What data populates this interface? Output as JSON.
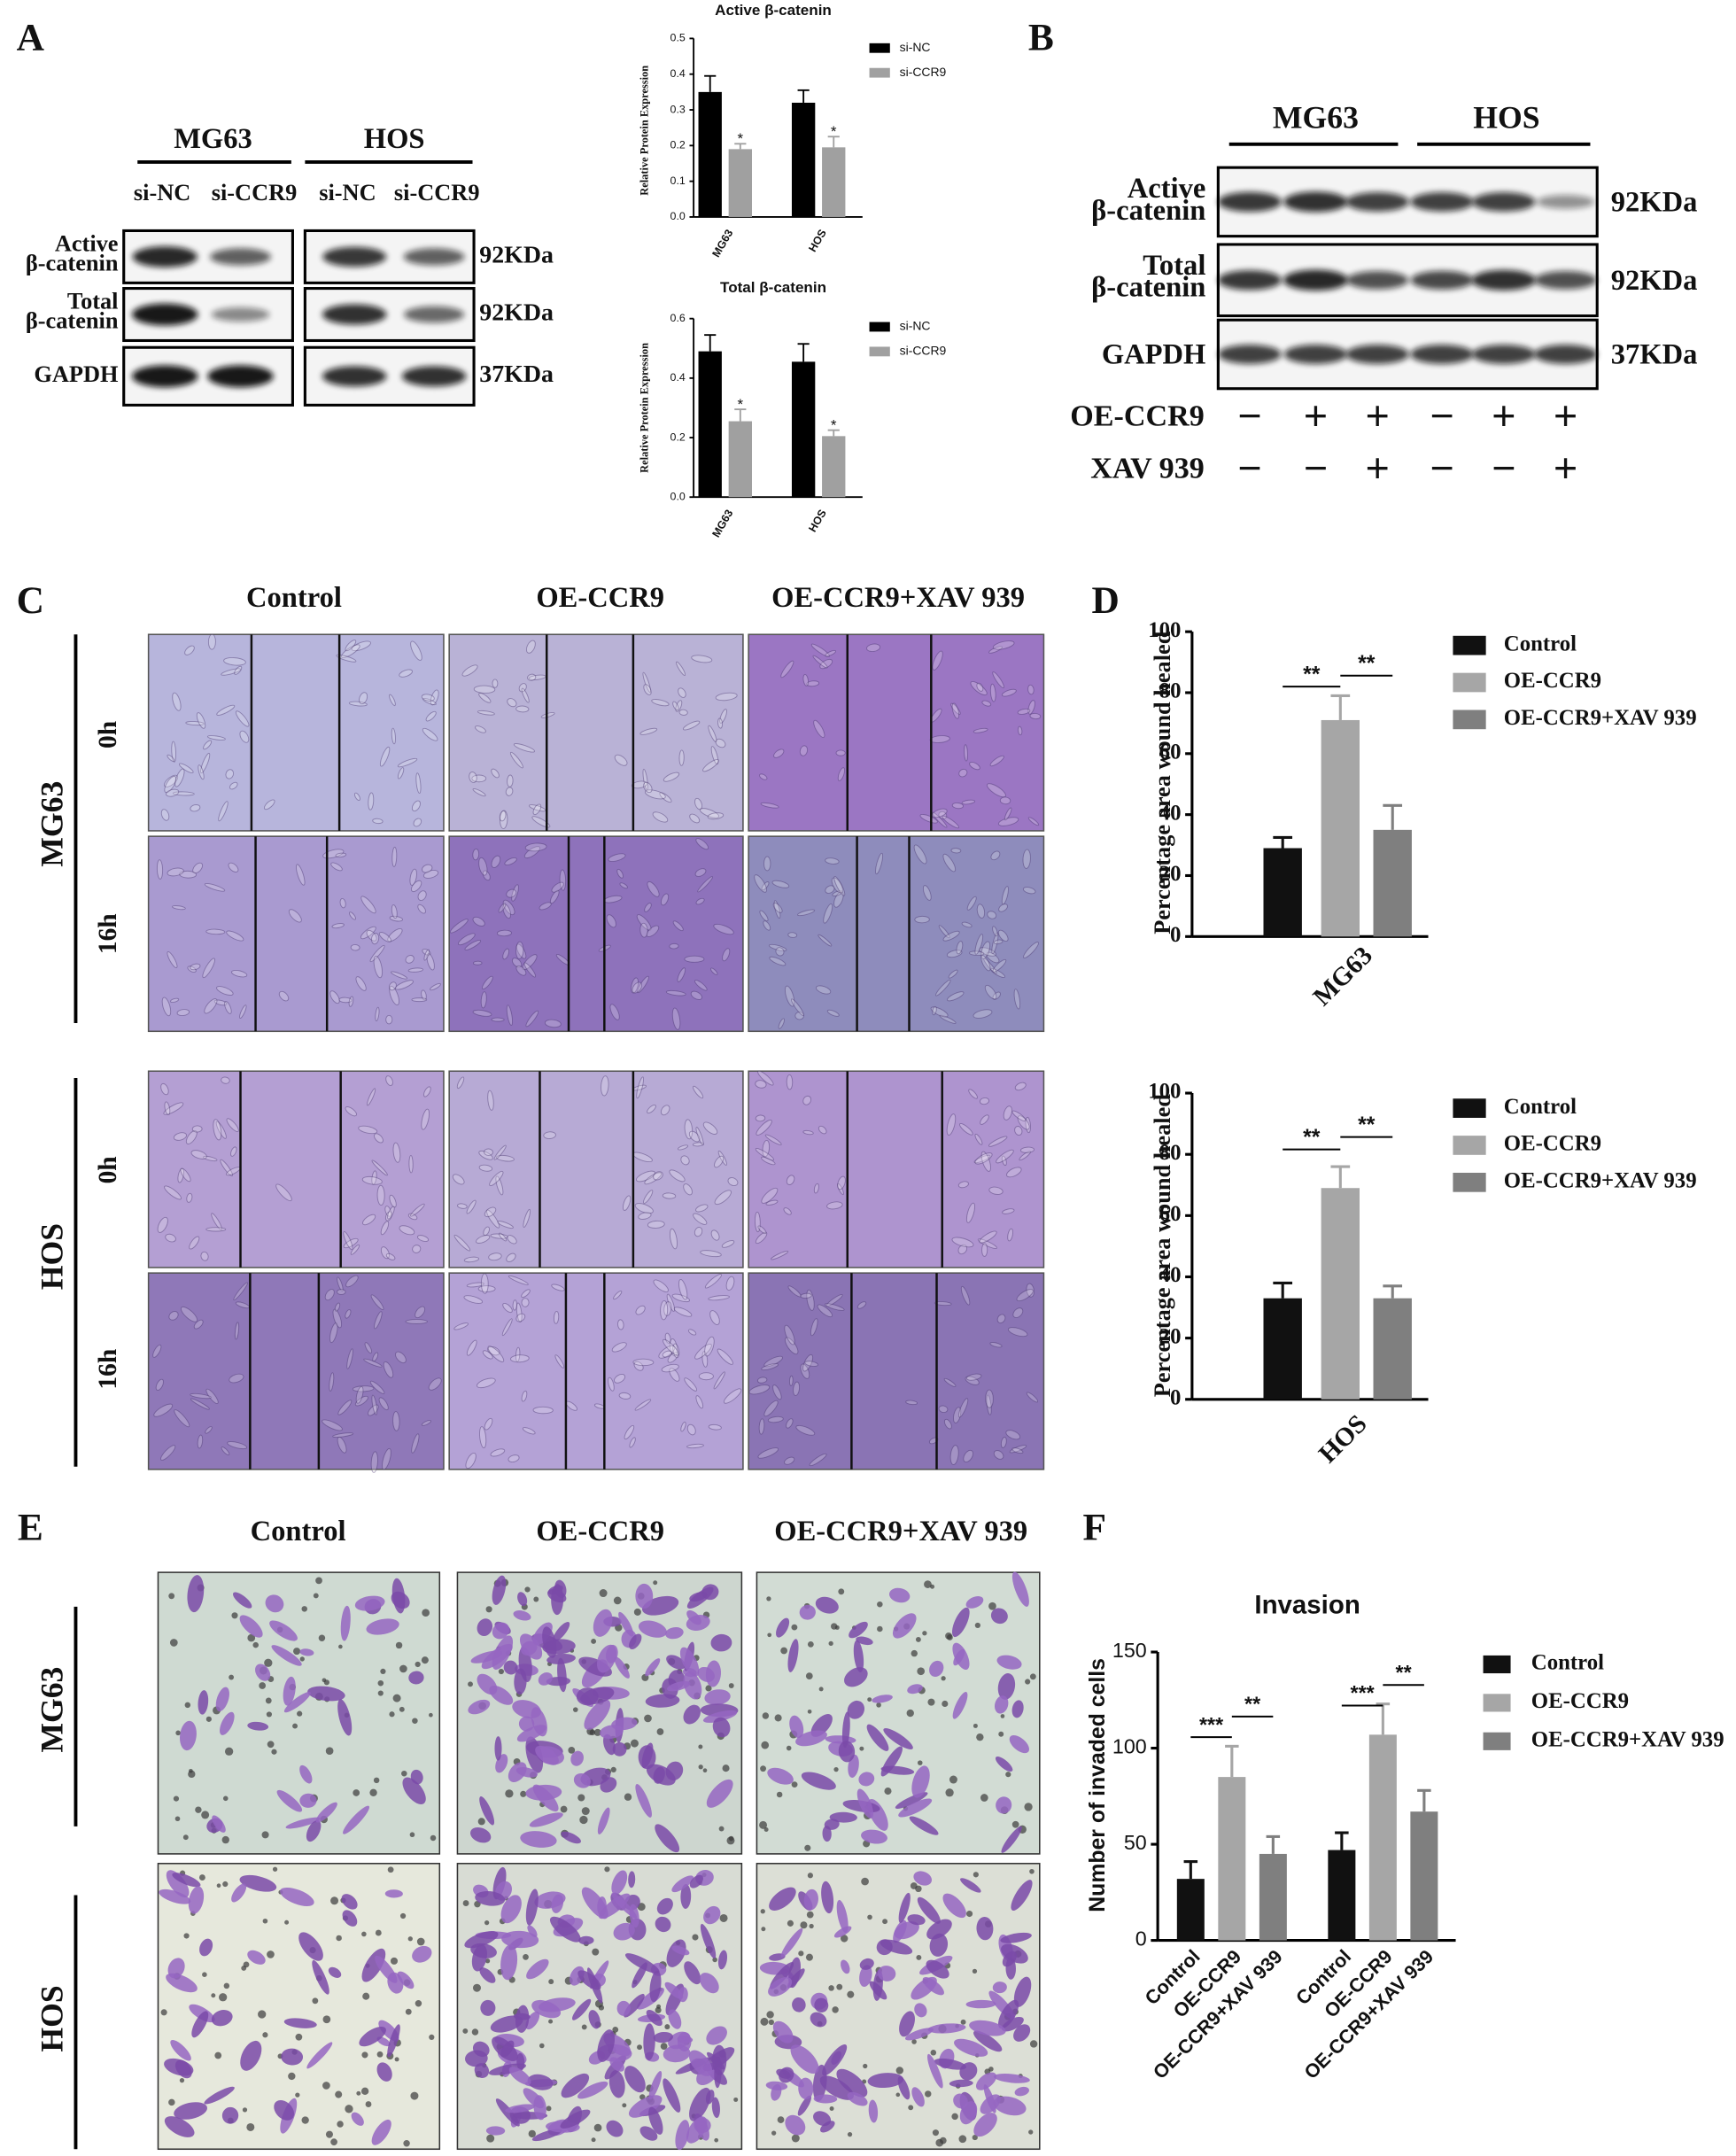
{
  "panel_labels": [
    "A",
    "B",
    "C",
    "D",
    "E",
    "F"
  ],
  "blot_A": {
    "cell_lines": [
      "MG63",
      "HOS"
    ],
    "lanes": [
      "si-NC",
      "si-CCR9",
      "si-NC",
      "si-CCR9"
    ],
    "rows": [
      {
        "name": [
          "Active",
          "β-catenin"
        ],
        "size": "92KDa"
      },
      {
        "name": [
          "Total",
          "β-catenin"
        ],
        "size": "92KDa"
      },
      {
        "name": [
          "GAPDH"
        ],
        "size": "37KDa"
      }
    ]
  },
  "blot_B": {
    "cell_lines": [
      "MG63",
      "HOS"
    ],
    "rows": [
      {
        "name": [
          "Active",
          "β-catenin"
        ],
        "size": "92KDa"
      },
      {
        "name": [
          "Total",
          "β-catenin"
        ],
        "size": "92KDa"
      },
      {
        "name": [
          "GAPDH"
        ],
        "size": "37KDa"
      }
    ],
    "treatments": [
      {
        "name": "OE-CCR9",
        "signs": [
          "−",
          "+",
          "+",
          "−",
          "+",
          "+"
        ]
      },
      {
        "name": "XAV 939",
        "signs": [
          "−",
          "−",
          "+",
          "−",
          "−",
          "+"
        ]
      }
    ]
  },
  "wound_C": {
    "columns": [
      "Control",
      "OE-CCR9",
      "OE-CCR9+XAV 939"
    ],
    "cell_lines": [
      {
        "name": "MG63",
        "times": [
          "0h",
          "16h"
        ]
      },
      {
        "name": "HOS",
        "times": [
          "0h",
          "16h"
        ]
      }
    ]
  },
  "invasion_E": {
    "columns": [
      "Control",
      "OE-CCR9",
      "OE-CCR9+XAV 939"
    ],
    "cell_lines": [
      "MG63",
      "HOS"
    ]
  },
  "chart_data": [
    {
      "type": "bar",
      "title": "Active β-catenin",
      "ylabel": "Relative Protein Expression",
      "categories": [
        "MG63",
        "HOS"
      ],
      "series": [
        {
          "name": "si-NC",
          "color": "#000000",
          "values": [
            0.35,
            0.32
          ],
          "errors": [
            0.045,
            0.035
          ]
        },
        {
          "name": "si-CCR9",
          "color": "#a0a0a0",
          "values": [
            0.19,
            0.195
          ],
          "errors": [
            0.015,
            0.03
          ]
        }
      ],
      "ylim": [
        0,
        0.5
      ],
      "yticks": [
        {
          "value": 0,
          "label": "0.0"
        },
        0.1,
        0.2,
        0.3,
        0.4,
        0.5
      ],
      "annotations": [
        "*",
        "*"
      ],
      "legend": "upper right"
    },
    {
      "type": "bar",
      "title": "Total β-catenin",
      "ylabel": "Relative Protein Expression",
      "categories": [
        "MG63",
        "HOS"
      ],
      "series": [
        {
          "name": "si-NC",
          "color": "#000000",
          "values": [
            0.49,
            0.455
          ],
          "errors": [
            0.055,
            0.06
          ]
        },
        {
          "name": "si-CCR9",
          "color": "#a0a0a0",
          "values": [
            0.255,
            0.205
          ],
          "errors": [
            0.04,
            0.02
          ]
        }
      ],
      "ylim": [
        0,
        0.6
      ],
      "yticks": [
        {
          "value": 0,
          "label": "0.0"
        },
        0.2,
        0.4,
        0.6
      ],
      "annotations": [
        "*",
        "*"
      ],
      "legend": "upper right"
    },
    {
      "type": "bar",
      "ylabel": "Percentage area wound healed",
      "categories": [
        "MG63"
      ],
      "series": [
        {
          "name": "Control",
          "color": "#111111",
          "values": [
            29
          ],
          "errors": [
            3.5
          ]
        },
        {
          "name": "OE-CCR9",
          "color": "#a6a6a6",
          "values": [
            71
          ],
          "errors": [
            8
          ]
        },
        {
          "name": "OE-CCR9+XAV 939",
          "color": "#7f7f7f",
          "values": [
            35
          ],
          "errors": [
            8
          ]
        }
      ],
      "ylim": [
        0,
        100
      ],
      "yticks": [
        0,
        20,
        40,
        60,
        80,
        100
      ],
      "annotations": [
        "**",
        "**"
      ],
      "legend": "right"
    },
    {
      "type": "bar",
      "ylabel": "Percentage area wound healed",
      "categories": [
        "HOS"
      ],
      "series": [
        {
          "name": "Control",
          "color": "#111111",
          "values": [
            33
          ],
          "errors": [
            5
          ]
        },
        {
          "name": "OE-CCR9",
          "color": "#a6a6a6",
          "values": [
            69
          ],
          "errors": [
            7
          ]
        },
        {
          "name": "OE-CCR9+XAV 939",
          "color": "#7f7f7f",
          "values": [
            33
          ],
          "errors": [
            4
          ]
        }
      ],
      "ylim": [
        0,
        100
      ],
      "yticks": [
        0,
        20,
        40,
        60,
        80,
        100
      ],
      "annotations": [
        "**",
        "**"
      ],
      "legend": "right"
    },
    {
      "type": "bar",
      "title": "Invasion",
      "ylabel": "Number of invaded cells",
      "categories": [
        null,
        null
      ],
      "series": [
        {
          "name": "Control",
          "color": "#111111",
          "values": [
            32,
            47
          ],
          "errors": [
            9,
            9
          ]
        },
        {
          "name": "OE-CCR9",
          "color": "#a6a6a6",
          "values": [
            85,
            107
          ],
          "errors": [
            16,
            16
          ]
        },
        {
          "name": "OE-CCR9+XAV 939",
          "color": "#7f7f7f",
          "values": [
            45,
            67
          ],
          "errors": [
            9,
            11
          ]
        }
      ],
      "ylim": [
        0,
        150
      ],
      "yticks": [
        0,
        50,
        100,
        150
      ],
      "annotations": [
        "***",
        "**",
        "***",
        "**"
      ],
      "legend": "right"
    }
  ]
}
